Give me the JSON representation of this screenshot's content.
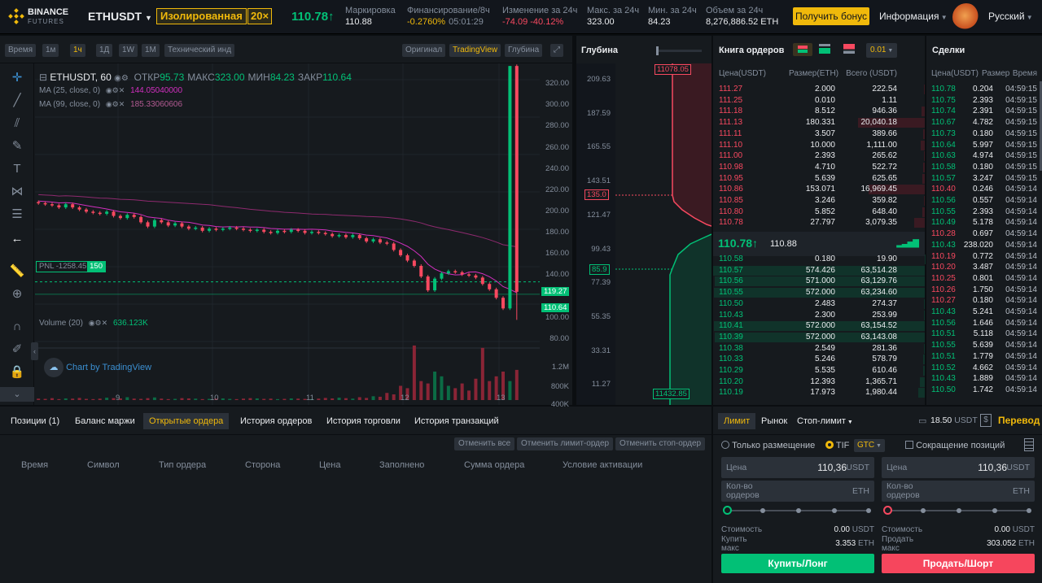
{
  "header": {
    "logo_line1": "BINANCE",
    "logo_line2": "FUTURES",
    "symbol": "ETHUSDT",
    "margin_mode": "Изолированная",
    "leverage": "20×",
    "last_price": "110.78↑",
    "stats": [
      {
        "label": "Маркировка",
        "value": "110.88",
        "color": "#eaecef"
      },
      {
        "label": "Финансирование/8ч",
        "value": "-0.2760%",
        "extra": "05:01:29",
        "color": "#f0b90b"
      },
      {
        "label": "Изменение за 24ч",
        "value": "-74.09 -40.12%",
        "color": "#f84960"
      },
      {
        "label": "Макс. за 24ч",
        "value": "323.00",
        "color": "#eaecef"
      },
      {
        "label": "Мин. за 24ч",
        "value": "84.23",
        "color": "#eaecef"
      },
      {
        "label": "Объем за 24ч",
        "value": "8,276,886.52 ETH",
        "color": "#eaecef"
      }
    ],
    "bonus_button": "Получить бонус",
    "info_menu": "Информация",
    "language": "Русский"
  },
  "chart_toolbar": {
    "buttons": [
      "Время",
      "1м",
      "1ч",
      "1Д",
      "1W",
      "1M",
      "Технический инд"
    ],
    "active": "1ч",
    "views": [
      "Оригинал",
      "TradingView",
      "Глубина"
    ],
    "active_view": "TradingView"
  },
  "chart": {
    "title": "ETHUSDT, 60",
    "ohlc": [
      {
        "k": "ОТКР",
        "v": "95.73"
      },
      {
        "k": "МАКС",
        "v": "323.00"
      },
      {
        "k": "МИН",
        "v": "84.23"
      },
      {
        "k": "ЗАКР",
        "v": "110.64"
      }
    ],
    "ma25_label": "MA (25, close, 0)",
    "ma25_value": "144.05040000",
    "ma99_label": "MA (99, close, 0)",
    "ma99_value": "185.33060606",
    "pnl_label": "PNL -1258.45",
    "pnl_qty": "150",
    "volume_label": "Volume (20)",
    "volume_value": "636.123K",
    "watermark": "Chart by TradingView",
    "price_ticks": [
      "320.00",
      "300.00",
      "280.00",
      "260.00",
      "240.00",
      "220.00",
      "200.00",
      "180.00",
      "160.00",
      "140.00",
      "100.00",
      "80.00"
    ],
    "price_tag_1": "119.27",
    "price_tag_2": "110.64",
    "volume_ticks": [
      "1.2M",
      "800K",
      "400K",
      "0"
    ],
    "x_ticks": [
      "9",
      "10",
      "11",
      "12",
      "13"
    ]
  },
  "chart_data": {
    "type": "candlestick",
    "x_ticks": [
      "9",
      "10",
      "11",
      "12",
      "13"
    ],
    "ylim": [
      70,
      330
    ],
    "close_series": [
      194,
      193,
      192,
      190,
      193,
      190,
      188,
      186,
      185,
      184,
      186,
      182,
      180,
      183,
      181,
      176,
      172,
      178,
      176,
      173,
      175,
      172,
      170,
      171,
      168,
      170,
      169,
      170,
      171,
      170,
      169,
      168,
      169,
      167,
      166,
      168,
      167,
      169,
      168,
      166,
      167,
      166,
      165,
      163,
      164,
      162,
      164,
      161,
      158,
      160,
      157,
      156,
      150,
      145,
      140,
      135,
      125,
      112,
      123,
      128,
      130,
      129,
      127,
      126,
      124,
      118,
      113,
      105,
      95,
      323,
      110.64
    ],
    "volume_series": [
      30,
      25,
      40,
      20,
      35,
      30,
      45,
      25,
      20,
      30,
      50,
      40,
      35,
      60,
      30,
      25,
      40,
      55,
      30,
      20,
      25,
      40,
      35,
      30,
      20,
      25,
      30,
      35,
      25,
      20,
      30,
      40,
      35,
      25,
      30,
      20,
      25,
      35,
      30,
      25,
      20,
      30,
      45,
      35,
      50,
      40,
      30,
      60,
      45,
      80,
      70,
      150,
      120,
      300,
      250,
      1150,
      400,
      350,
      600,
      500,
      300,
      250,
      350,
      200,
      450,
      1100,
      400,
      500,
      600,
      400,
      636
    ]
  },
  "depth": {
    "title": "Глубина",
    "top_tag": "11078.05",
    "bottom_tag": "11432.85",
    "ask_tag": "135.0",
    "bid_tag": "85.9",
    "ticks": [
      "209.63",
      "187.59",
      "165.55",
      "143.51",
      "121.47",
      "99.43",
      "77.39",
      "55.35",
      "33.31",
      "11.27"
    ]
  },
  "orderbook": {
    "title": "Книга ордеров",
    "precision": "0.01",
    "headers": [
      "Цена(USDT)",
      "Размер(ETH)",
      "Всего (USDT)"
    ],
    "asks": [
      [
        "111.27",
        "2.000",
        "222.54"
      ],
      [
        "111.25",
        "0.010",
        "1.11"
      ],
      [
        "111.18",
        "8.512",
        "946.36"
      ],
      [
        "111.13",
        "180.331",
        "20,040.18"
      ],
      [
        "111.11",
        "3.507",
        "389.66"
      ],
      [
        "111.10",
        "10.000",
        "1,111.00"
      ],
      [
        "111.00",
        "2.393",
        "265.62"
      ],
      [
        "110.98",
        "4.710",
        "522.72"
      ],
      [
        "110.95",
        "5.639",
        "625.65"
      ],
      [
        "110.86",
        "153.071",
        "16,969.45"
      ],
      [
        "110.85",
        "3.246",
        "359.82"
      ],
      [
        "110.80",
        "5.852",
        "648.40"
      ],
      [
        "110.78",
        "27.797",
        "3,079.35"
      ]
    ],
    "last": "110.78↑",
    "mark": "110.88",
    "bids": [
      [
        "110.58",
        "0.180",
        "19.90"
      ],
      [
        "110.57",
        "574.426",
        "63,514.28"
      ],
      [
        "110.56",
        "571.000",
        "63,129.76"
      ],
      [
        "110.55",
        "572.000",
        "63,234.60"
      ],
      [
        "110.50",
        "2.483",
        "274.37"
      ],
      [
        "110.43",
        "2.300",
        "253.99"
      ],
      [
        "110.41",
        "572.000",
        "63,154.52"
      ],
      [
        "110.39",
        "572.000",
        "63,143.08"
      ],
      [
        "110.38",
        "2.549",
        "281.36"
      ],
      [
        "110.33",
        "5.246",
        "578.79"
      ],
      [
        "110.29",
        "5.535",
        "610.46"
      ],
      [
        "110.20",
        "12.393",
        "1,365.71"
      ],
      [
        "110.19",
        "17.973",
        "1,980.44"
      ]
    ]
  },
  "trades": {
    "title": "Сделки",
    "headers": [
      "Цена(USDT)",
      "Размер",
      "Время"
    ],
    "rows": [
      [
        "110.78",
        "0.204",
        "04:59:15",
        "g"
      ],
      [
        "110.75",
        "2.393",
        "04:59:15",
        "g"
      ],
      [
        "110.74",
        "2.391",
        "04:59:15",
        "g"
      ],
      [
        "110.67",
        "4.782",
        "04:59:15",
        "g"
      ],
      [
        "110.73",
        "0.180",
        "04:59:15",
        "g"
      ],
      [
        "110.64",
        "5.997",
        "04:59:15",
        "g"
      ],
      [
        "110.63",
        "4.974",
        "04:59:15",
        "g"
      ],
      [
        "110.58",
        "0.180",
        "04:59:15",
        "g"
      ],
      [
        "110.57",
        "3.247",
        "04:59:15",
        "g"
      ],
      [
        "110.40",
        "0.246",
        "04:59:14",
        "r"
      ],
      [
        "110.56",
        "0.557",
        "04:59:14",
        "g"
      ],
      [
        "110.55",
        "2.393",
        "04:59:14",
        "g"
      ],
      [
        "110.49",
        "5.178",
        "04:59:14",
        "g"
      ],
      [
        "110.28",
        "0.697",
        "04:59:14",
        "r"
      ],
      [
        "110.43",
        "238.020",
        "04:59:14",
        "g"
      ],
      [
        "110.19",
        "0.772",
        "04:59:14",
        "r"
      ],
      [
        "110.20",
        "3.487",
        "04:59:14",
        "r"
      ],
      [
        "110.25",
        "0.801",
        "04:59:14",
        "r"
      ],
      [
        "110.26",
        "1.750",
        "04:59:14",
        "r"
      ],
      [
        "110.27",
        "0.180",
        "04:59:14",
        "r"
      ],
      [
        "110.43",
        "5.241",
        "04:59:14",
        "g"
      ],
      [
        "110.56",
        "1.646",
        "04:59:14",
        "g"
      ],
      [
        "110.51",
        "5.118",
        "04:59:14",
        "g"
      ],
      [
        "110.55",
        "5.639",
        "04:59:14",
        "g"
      ],
      [
        "110.51",
        "1.779",
        "04:59:14",
        "g"
      ],
      [
        "110.52",
        "4.662",
        "04:59:14",
        "g"
      ],
      [
        "110.43",
        "1.889",
        "04:59:14",
        "g"
      ],
      [
        "110.50",
        "1.742",
        "04:59:14",
        "g"
      ]
    ]
  },
  "positions": {
    "tabs": [
      "Позиции (1)",
      "Баланс маржи",
      "Открытые ордера",
      "История ордеров",
      "История торговли",
      "История транзакций"
    ],
    "active_tab": "Открытые ордера",
    "cancel_buttons": [
      "Отменить все",
      "Отменить лимит-ордер",
      "Отменить стоп-ордер"
    ],
    "columns": [
      "Время",
      "Символ",
      "Тип ордера",
      "Сторона",
      "Цена",
      "Заполнено",
      "Сумма ордера",
      "Условие активации"
    ]
  },
  "trade_form": {
    "tabs": [
      "Лимит",
      "Рынок",
      "Стоп-лимит"
    ],
    "active_tab": "Лимит",
    "balance": "18.50",
    "balance_unit": "USDT",
    "transfer": "Перевод",
    "post_only": "Только размещение",
    "tif": "TIF",
    "tif_value": "GTC",
    "reduce_only": "Сокращение позиций",
    "buy": {
      "price_label": "Цена",
      "price_value": "110,36",
      "price_unit": "USDT",
      "qty_label1": "Кол-во",
      "qty_label2": "ордеров",
      "qty_unit": "ETH",
      "cost_label": "Стоимость",
      "cost_value": "0.00",
      "cost_unit": "USDT",
      "max_label1": "Купить",
      "max_label2": "макс",
      "max_value": "3.353",
      "max_unit": "ETH",
      "button": "Купить/Лонг"
    },
    "sell": {
      "price_label": "Цена",
      "price_value": "110,36",
      "price_unit": "USDT",
      "qty_label1": "Кол-во",
      "qty_label2": "ордеров",
      "qty_unit": "ETH",
      "cost_label": "Стоимость",
      "cost_value": "0.00",
      "cost_unit": "USDT",
      "max_label1": "Продать",
      "max_label2": "макс",
      "max_value": "303.052",
      "max_unit": "ETH",
      "button": "Продать/Шорт"
    }
  },
  "colors": {
    "up": "#02c076",
    "down": "#f84960",
    "accent": "#f0b90b",
    "ma25": "#d12fbf",
    "ma99": "#8e2a6f"
  }
}
